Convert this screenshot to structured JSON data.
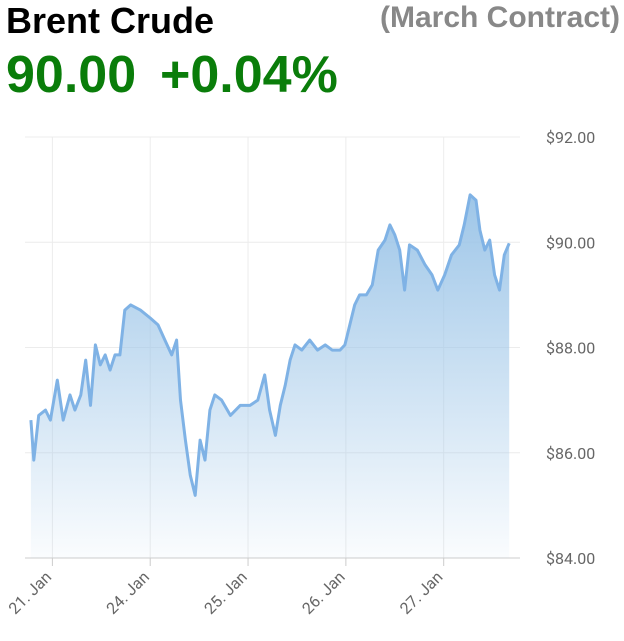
{
  "chart_data": {
    "type": "area",
    "title": "Brent Crude",
    "subtitle": "(March Contract)",
    "last_price": "90.00",
    "change": "+0.04%",
    "x": [
      -0.22,
      -0.19,
      -0.14,
      -0.07,
      -0.02,
      0.05,
      0.11,
      0.18,
      0.23,
      0.29,
      0.34,
      0.39,
      0.44,
      0.49,
      0.54,
      0.59,
      0.64,
      0.69,
      0.74,
      0.8,
      0.9,
      1.0,
      1.08,
      1.15,
      1.22,
      1.27,
      1.31,
      1.36,
      1.41,
      1.46,
      1.51,
      1.56,
      1.61,
      1.66,
      1.73,
      1.82,
      1.92,
      2.02,
      2.1,
      2.17,
      2.22,
      2.28,
      2.33,
      2.38,
      2.43,
      2.48,
      2.55,
      2.63,
      2.71,
      2.79,
      2.86,
      2.94,
      2.99,
      3.04,
      3.09,
      3.14,
      3.21,
      3.27,
      3.33,
      3.4,
      3.45,
      3.5,
      3.55,
      3.6,
      3.65,
      3.73,
      3.81,
      3.88,
      3.94,
      4.01,
      4.08,
      4.16,
      4.21,
      4.27,
      4.33,
      4.37,
      4.42,
      4.47,
      4.52,
      4.57,
      4.62,
      4.67
    ],
    "series": [
      {
        "name": "Brent Crude",
        "color": "#7fb2e5",
        "values": [
          86.62,
          85.86,
          86.71,
          86.81,
          86.62,
          87.38,
          86.62,
          87.1,
          86.81,
          87.1,
          87.76,
          86.9,
          88.05,
          87.67,
          87.86,
          87.57,
          87.86,
          87.86,
          88.71,
          88.81,
          88.71,
          88.56,
          88.43,
          88.14,
          87.86,
          88.14,
          87.0,
          86.24,
          85.57,
          85.19,
          86.24,
          85.86,
          86.81,
          87.1,
          87.0,
          86.71,
          86.9,
          86.9,
          87.0,
          87.48,
          86.81,
          86.33,
          86.9,
          87.28,
          87.76,
          88.05,
          87.95,
          88.14,
          87.95,
          88.05,
          87.95,
          87.95,
          88.05,
          88.43,
          88.81,
          89.0,
          89.0,
          89.19,
          89.85,
          90.04,
          90.33,
          90.14,
          89.85,
          89.09,
          89.95,
          89.85,
          89.57,
          89.38,
          89.09,
          89.38,
          89.76,
          89.95,
          90.33,
          90.9,
          90.8,
          90.23,
          89.85,
          90.04,
          89.38,
          89.09,
          89.76,
          89.98
        ]
      }
    ],
    "xlim": [
      -0.28,
      4.78
    ],
    "xticks": [
      {
        "value": 0,
        "label": "21. Jan"
      },
      {
        "value": 1,
        "label": "24. Jan"
      },
      {
        "value": 2,
        "label": "25. Jan"
      },
      {
        "value": 3,
        "label": "26. Jan"
      },
      {
        "value": 4,
        "label": "27. Jan"
      }
    ],
    "ylim": [
      84,
      92
    ],
    "yticks": [
      {
        "value": 84,
        "label": "$84.00"
      },
      {
        "value": 86,
        "label": "$86.00"
      },
      {
        "value": 88,
        "label": "$88.00"
      },
      {
        "value": 90,
        "label": "$90.00"
      },
      {
        "value": 92,
        "label": "$92.00"
      }
    ],
    "grid": true
  }
}
